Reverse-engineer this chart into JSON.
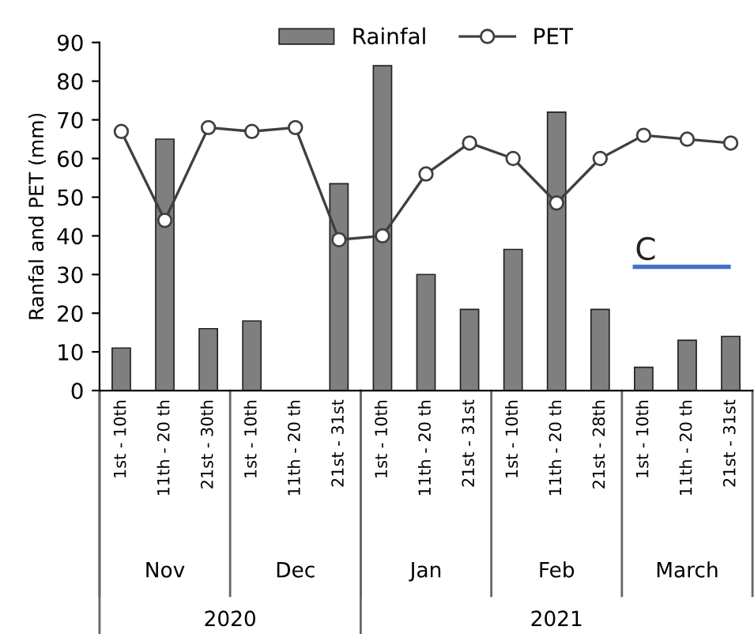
{
  "chart_data": {
    "type": "bar",
    "ylabel": "Ranfal and PET (mm)",
    "categories": [
      "1st - 10th",
      "11th - 20 th",
      "21st - 30th",
      "1st - 10th",
      "11th - 20 th",
      "21st - 31st",
      "1st - 10th",
      "11th - 20 th",
      "21st - 31st",
      "1st - 10th",
      "11th - 20 th",
      "21st - 28th",
      "1st - 10th",
      "11th - 20 th",
      "21st - 31st"
    ],
    "series": [
      {
        "name": "Rainfal",
        "color": "#7f7f7f",
        "values": [
          11,
          65,
          16,
          18,
          null,
          53.5,
          84,
          30,
          21,
          36.5,
          72,
          21,
          6,
          13,
          14
        ]
      },
      {
        "name": "PET",
        "type": "line",
        "color": "#404040",
        "marker": "circle",
        "values": [
          67,
          44,
          68,
          67,
          68,
          39,
          40,
          56,
          64,
          60,
          48.5,
          60,
          66,
          65,
          64
        ]
      }
    ],
    "ylim": [
      0,
      90
    ],
    "yticks": [
      0,
      10,
      20,
      30,
      40,
      50,
      60,
      70,
      80,
      90
    ],
    "grid": false,
    "legend": "top",
    "annotations": [
      "Nov",
      "Dec",
      "Jan",
      "Feb",
      "March",
      "2020",
      "2021",
      "C"
    ]
  }
}
